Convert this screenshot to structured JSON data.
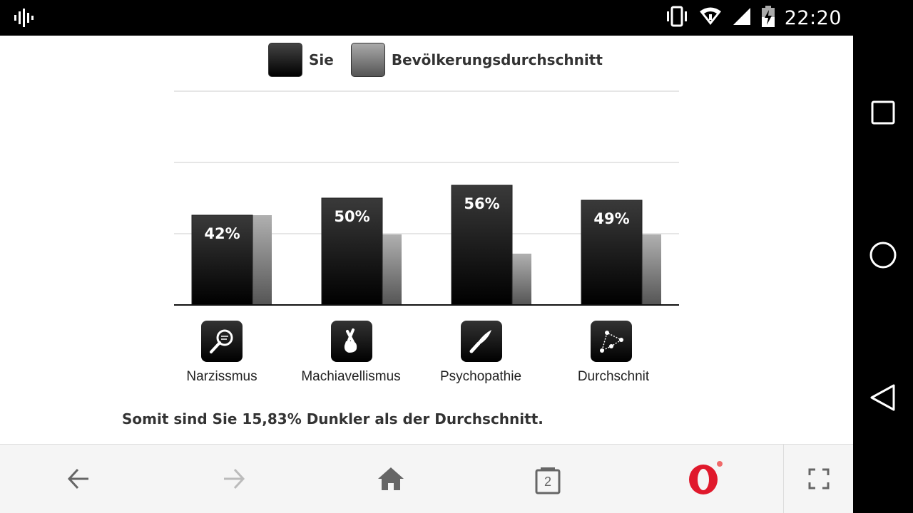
{
  "status_bar": {
    "time": "22:20",
    "icons": [
      "sound-wave-icon",
      "vibrate-icon",
      "wifi-icon",
      "signal-icon",
      "battery-charging-icon"
    ]
  },
  "legend": {
    "you_label": "Sie",
    "avg_label": "Bevölkerungsdurchschnitt"
  },
  "chart_data": {
    "type": "bar",
    "categories": [
      "Narzissmus",
      "Machiavellismus",
      "Psychopathie",
      "Durchschnit"
    ],
    "series": [
      {
        "name": "Sie",
        "values": [
          42,
          50,
          56,
          49
        ],
        "labels": [
          "42%",
          "50%",
          "56%",
          "49%"
        ],
        "color": "#000000"
      },
      {
        "name": "Bevölkerungsdurchschnitt",
        "values": [
          42,
          33,
          24,
          33
        ],
        "color": "#777777"
      }
    ],
    "ylim": [
      0,
      100
    ],
    "grid": true,
    "legend_position": "top",
    "category_icons": [
      "magnifier-icon",
      "crossed-fingers-icon",
      "knife-icon",
      "constellation-icon"
    ]
  },
  "summary": "Somit sind Sie 15,83% Dunkler als der Durchschnitt.",
  "browser_toolbar": {
    "tab_count": "2",
    "buttons": [
      "back-icon",
      "forward-icon",
      "home-icon",
      "tabs-icon",
      "opera-menu-icon",
      "fullscreen-icon"
    ]
  },
  "nav_bar": {
    "buttons": [
      "recents-icon",
      "home-circle-icon",
      "back-triangle-icon"
    ]
  }
}
